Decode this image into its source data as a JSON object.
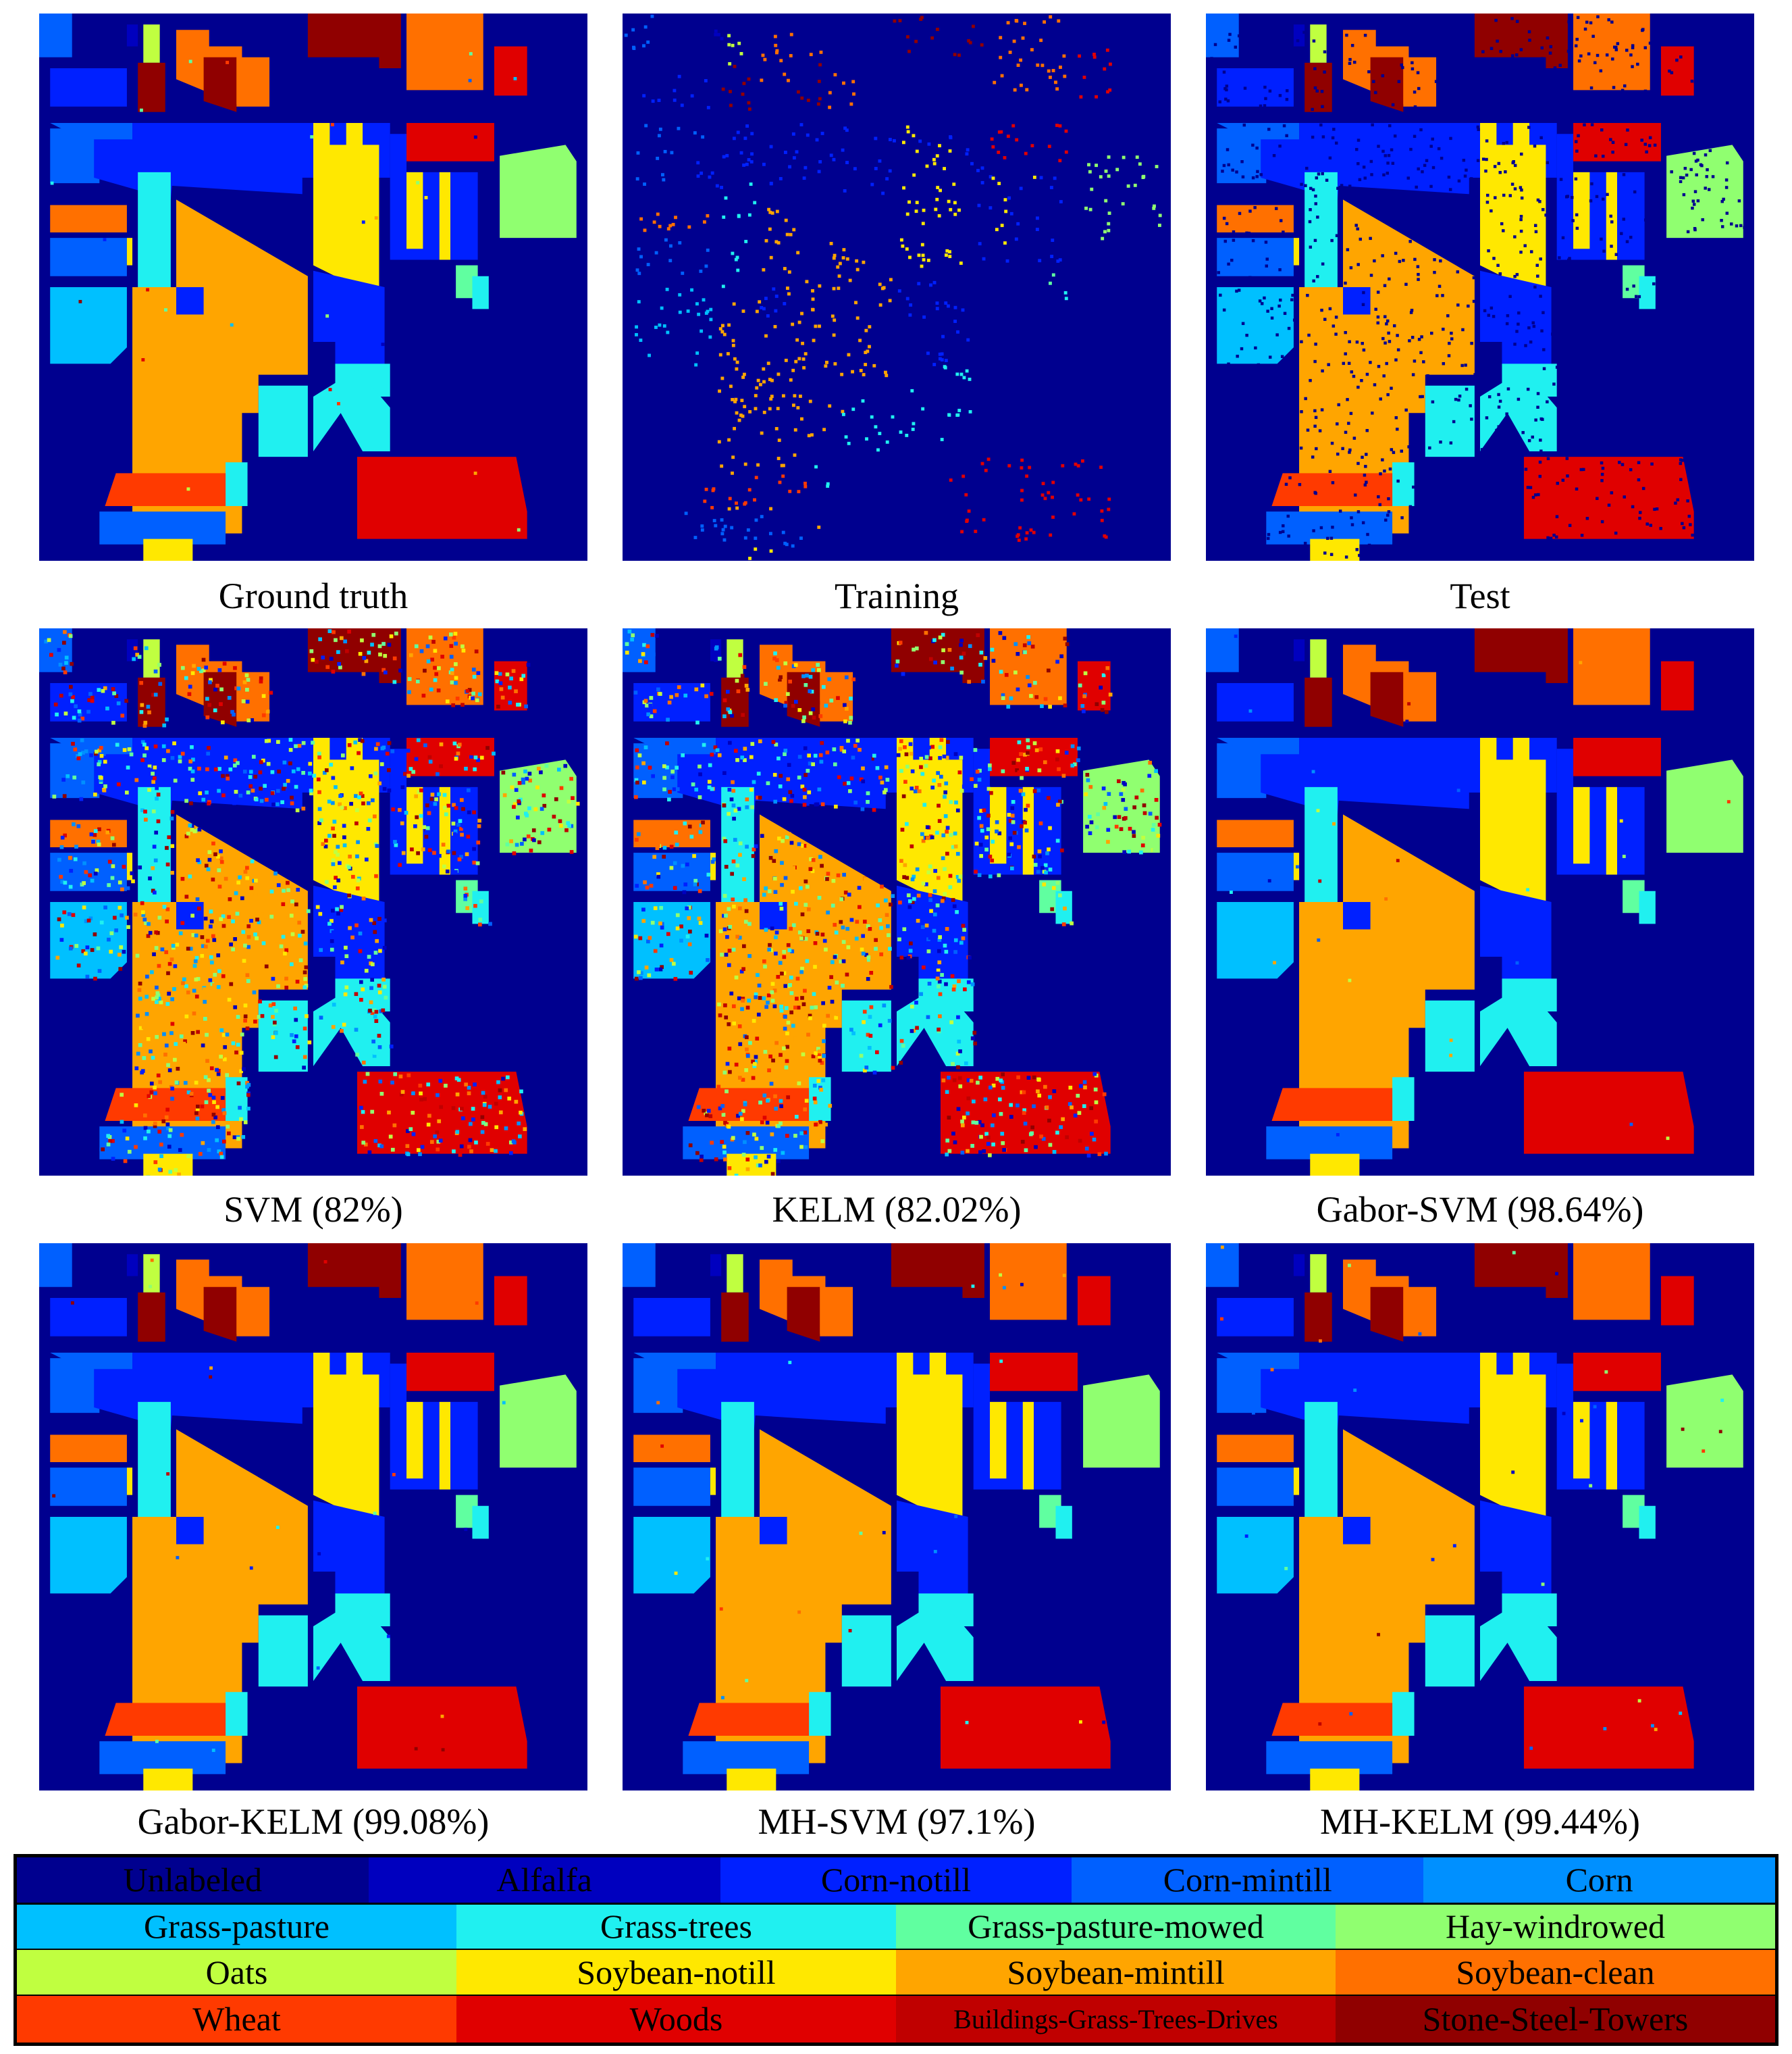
{
  "palette": {
    "background": "#00008F",
    "alfalfa": "#0000BF",
    "corn_notill": "#0020FF",
    "corn_mintill": "#0060FF",
    "corn": "#0090FF",
    "grass_pasture": "#00C0FF",
    "grass_trees": "#20F0F0",
    "grass_pasture_mowed": "#60FFA0",
    "hay_windrowed": "#90FF70",
    "oats": "#C0FF40",
    "soybean_notill": "#FFE800",
    "soybean_mintill": "#FFA500",
    "soybean_clean": "#FF7000",
    "wheat": "#FF3A00",
    "woods": "#E00000",
    "buildings": "#C00000",
    "stone": "#900000"
  },
  "panels": [
    {
      "caption": "Ground truth",
      "mode": "gt"
    },
    {
      "caption": "Training",
      "mode": "train"
    },
    {
      "caption": "Test",
      "mode": "test"
    },
    {
      "caption": "SVM (82%)",
      "mode": "noisy"
    },
    {
      "caption": "KELM (82.02%)",
      "mode": "noisy"
    },
    {
      "caption": "Gabor-SVM (98.64%)",
      "mode": "clean"
    },
    {
      "caption": "Gabor-KELM (99.08%)",
      "mode": "clean"
    },
    {
      "caption": "MH-SVM (97.1%)",
      "mode": "clean"
    },
    {
      "caption": "MH-KELM (99.44%)",
      "mode": "clean"
    }
  ],
  "legend": {
    "rows": [
      [
        {
          "label": "Unlabeled",
          "color": "#00008F"
        },
        {
          "label": "Alfalfa",
          "color": "#0000BF"
        },
        {
          "label": "Corn-notill",
          "color": "#0020FF"
        },
        {
          "label": "Corn-mintill",
          "color": "#0060FF"
        },
        {
          "label": "Corn",
          "color": "#0090FF"
        }
      ],
      [
        {
          "label": "Grass-pasture",
          "color": "#00C0FF"
        },
        {
          "label": "Grass-trees",
          "color": "#20F0F0"
        },
        {
          "label": "Grass-pasture-mowed",
          "color": "#60FFA0"
        },
        {
          "label": "Hay-windrowed",
          "color": "#90FF70"
        }
      ],
      [
        {
          "label": "Oats",
          "color": "#C0FF40"
        },
        {
          "label": "Soybean-notill",
          "color": "#FFE800"
        },
        {
          "label": "Soybean-mintill",
          "color": "#FFA500"
        },
        {
          "label": "Soybean-clean",
          "color": "#FF7000"
        }
      ],
      [
        {
          "label": "Wheat",
          "color": "#FF3A00"
        },
        {
          "label": "Woods",
          "color": "#E00000"
        },
        {
          "label": "Buildings-Grass-Trees-Drives",
          "color": "#C00000"
        },
        {
          "label": "Stone-Steel-Towers",
          "color": "#900000"
        }
      ]
    ]
  }
}
